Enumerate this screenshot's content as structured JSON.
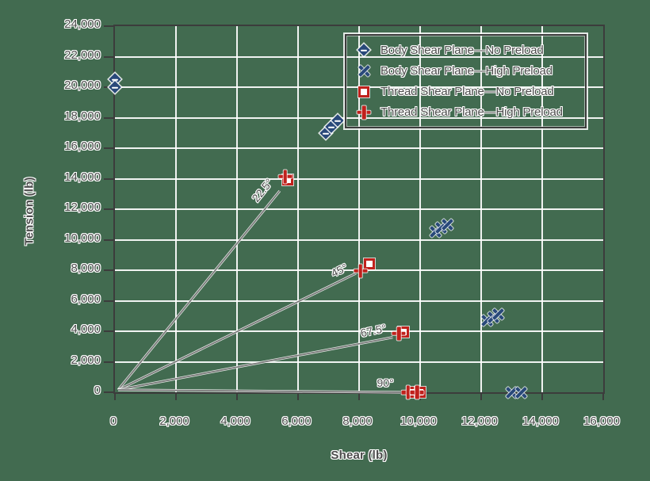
{
  "colors": {
    "background": "#426b50",
    "frame": "#3c3c3c",
    "grid": "#f2f2f2",
    "blue": "#29497a",
    "red": "#c0211c",
    "guide_line": "#777777",
    "text": "#4c4c4c"
  },
  "axes": {
    "x": {
      "title": "Shear (lb)",
      "tick_labels": [
        "0",
        "2,000",
        "4,000",
        "6,000",
        "8,000",
        "10,000",
        "12,000",
        "14,000",
        "16,000"
      ]
    },
    "y": {
      "title": "Tension (lb)",
      "tick_labels": [
        "0",
        "2,000",
        "4,000",
        "6,000",
        "8,000",
        "10,000",
        "12,000",
        "14,000",
        "16,000",
        "18,000",
        "20,000",
        "22,000",
        "24,000"
      ]
    }
  },
  "guide_lines": [
    {
      "label": "22.5°",
      "end": [
        5400,
        13200
      ],
      "label_pos": [
        4830,
        13250
      ],
      "label_rot": -51
    },
    {
      "label": "45°",
      "end": [
        7900,
        7800
      ],
      "label_pos": [
        7350,
        8000
      ],
      "label_rot": -26
    },
    {
      "label": "67.5°",
      "end": [
        9100,
        3600
      ],
      "label_pos": [
        8470,
        4050
      ],
      "label_rot": -12
    },
    {
      "label": "90°",
      "end": [
        9350,
        0
      ],
      "label_pos": [
        8860,
        600
      ],
      "label_rot": 0
    }
  ],
  "chart_data": {
    "type": "scatter",
    "xlabel": "Shear (lb)",
    "ylabel": "Tension (lb)",
    "xlim": [
      0,
      16000
    ],
    "ylim": [
      0,
      24000
    ],
    "x_ticks": [
      0,
      2000,
      4000,
      6000,
      8000,
      10000,
      12000,
      14000,
      16000
    ],
    "y_ticks": [
      0,
      2000,
      4000,
      6000,
      8000,
      10000,
      12000,
      14000,
      16000,
      18000,
      20000,
      22000,
      24000
    ],
    "grid": true,
    "legend_position": "top-right",
    "series": [
      {
        "name": "Body Shear Plane—No Preload",
        "marker": "diamond",
        "color": "#29497a",
        "points": [
          [
            0,
            20500
          ],
          [
            0,
            20000
          ],
          [
            6900,
            17000
          ],
          [
            7100,
            17400
          ],
          [
            7300,
            17800
          ]
        ]
      },
      {
        "name": "Body Shear Plane—High Preload",
        "marker": "x",
        "color": "#29497a",
        "points": [
          [
            10500,
            10500
          ],
          [
            10700,
            10800
          ],
          [
            10900,
            11000
          ],
          [
            12200,
            4700
          ],
          [
            12400,
            4900
          ],
          [
            12550,
            5100
          ],
          [
            13000,
            0
          ],
          [
            13300,
            0
          ]
        ]
      },
      {
        "name": "Thread Shear Plane—No Preload",
        "marker": "square",
        "color": "#c0211c",
        "points": [
          [
            5650,
            13900
          ],
          [
            8350,
            8400
          ],
          [
            9450,
            3950
          ],
          [
            9750,
            0
          ],
          [
            10000,
            0
          ]
        ]
      },
      {
        "name": "Thread Shear Plane—High Preload",
        "marker": "plus",
        "color": "#c0211c",
        "points": [
          [
            5580,
            14150
          ],
          [
            8050,
            7950
          ],
          [
            9300,
            3850
          ],
          [
            9600,
            0
          ],
          [
            9900,
            0
          ]
        ]
      }
    ]
  }
}
